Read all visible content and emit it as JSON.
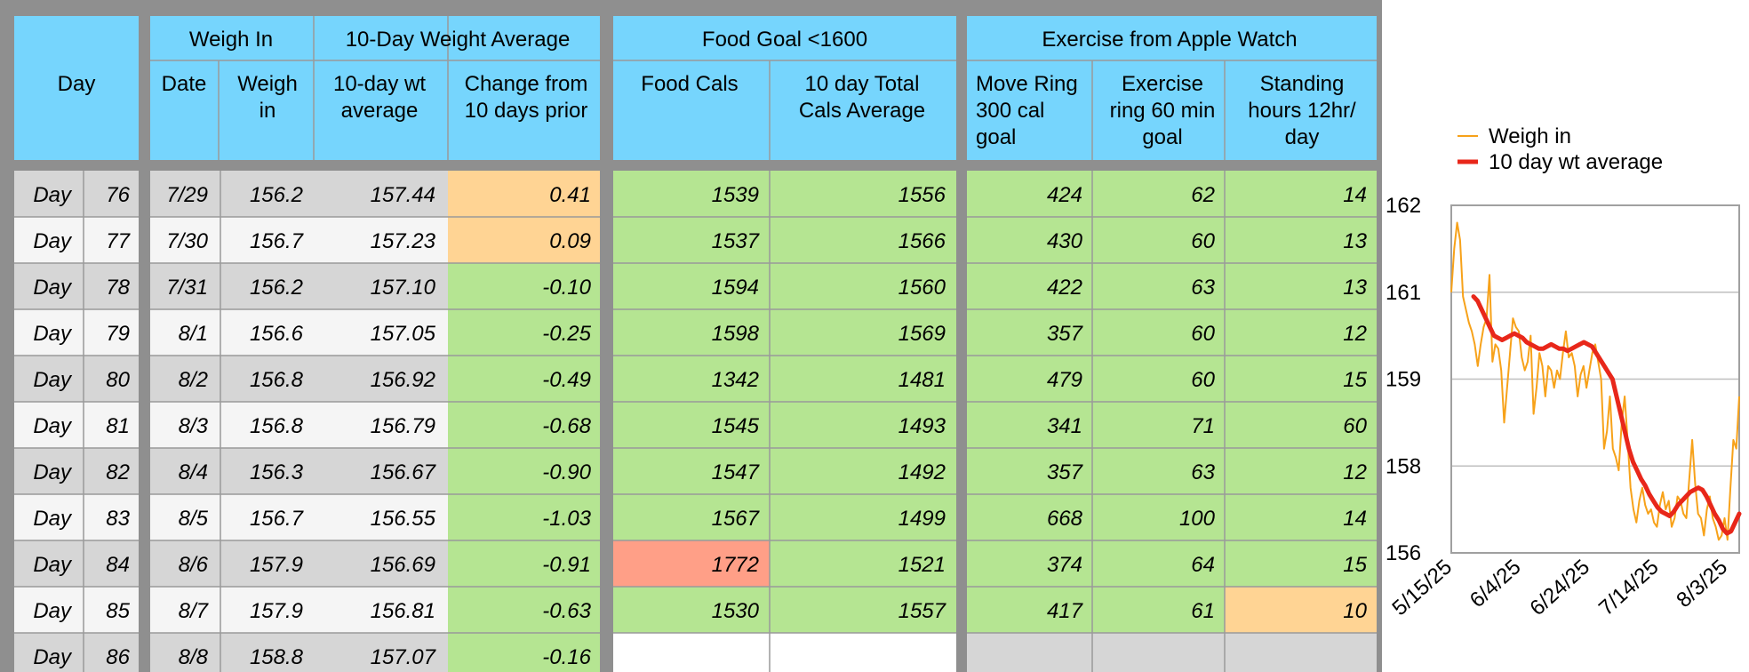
{
  "colors": {
    "header": "#76d5fd",
    "green": "#b5e592",
    "orange": "#ffd494",
    "red": "#ff9f87",
    "gray": "#d6d6d6",
    "light": "#f5f5f5",
    "frame": "#8f8f8f",
    "grid": "#9a9a9a"
  },
  "header": {
    "groups": {
      "weigh_in": "Weigh In",
      "ten_day_avg": "10-Day Weight Average",
      "food_goal": "Food Goal <1600",
      "exercise": "Exercise from Apple Watch"
    },
    "day": "Day",
    "date": "Date",
    "weigh_in_lines": [
      "Weigh",
      "in"
    ],
    "wt_avg_lines": [
      "10-day wt",
      "average"
    ],
    "change_lines": [
      "Change from",
      "10 days prior"
    ],
    "food_cals": "Food Cals",
    "total_cals_lines": [
      "10 day Total",
      "Cals Average"
    ],
    "move_lines": [
      "Move Ring",
      "300 cal",
      "goal"
    ],
    "exercise_lines": [
      "Exercise",
      "ring 60 min",
      "goal"
    ],
    "standing_lines": [
      "Standing",
      "hours 12hr/",
      "day"
    ]
  },
  "rows": [
    {
      "label": "Day",
      "day": "76",
      "date": "7/29",
      "weigh": "156.2",
      "avg": "157.44",
      "change": "0.41",
      "change_color": "orange",
      "food": "1539",
      "food_color": "green",
      "total": "1556",
      "move": "424",
      "exercise": "62",
      "stand": "14",
      "stand_color": "green"
    },
    {
      "label": "Day",
      "day": "77",
      "date": "7/30",
      "weigh": "156.7",
      "avg": "157.23",
      "change": "0.09",
      "change_color": "orange",
      "food": "1537",
      "food_color": "green",
      "total": "1566",
      "move": "430",
      "exercise": "60",
      "stand": "13",
      "stand_color": "green"
    },
    {
      "label": "Day",
      "day": "78",
      "date": "7/31",
      "weigh": "156.2",
      "avg": "157.10",
      "change": "-0.10",
      "change_color": "green",
      "food": "1594",
      "food_color": "green",
      "total": "1560",
      "move": "422",
      "exercise": "63",
      "stand": "13",
      "stand_color": "green"
    },
    {
      "label": "Day",
      "day": "79",
      "date": "8/1",
      "weigh": "156.6",
      "avg": "157.05",
      "change": "-0.25",
      "change_color": "green",
      "food": "1598",
      "food_color": "green",
      "total": "1569",
      "move": "357",
      "exercise": "60",
      "stand": "12",
      "stand_color": "green"
    },
    {
      "label": "Day",
      "day": "80",
      "date": "8/2",
      "weigh": "156.8",
      "avg": "156.92",
      "change": "-0.49",
      "change_color": "green",
      "food": "1342",
      "food_color": "green",
      "total": "1481",
      "move": "479",
      "exercise": "60",
      "stand": "15",
      "stand_color": "green"
    },
    {
      "label": "Day",
      "day": "81",
      "date": "8/3",
      "weigh": "156.8",
      "avg": "156.79",
      "change": "-0.68",
      "change_color": "green",
      "food": "1545",
      "food_color": "green",
      "total": "1493",
      "move": "341",
      "exercise": "71",
      "stand": "60",
      "stand_color": "green"
    },
    {
      "label": "Day",
      "day": "82",
      "date": "8/4",
      "weigh": "156.3",
      "avg": "156.67",
      "change": "-0.90",
      "change_color": "green",
      "food": "1547",
      "food_color": "green",
      "total": "1492",
      "move": "357",
      "exercise": "63",
      "stand": "12",
      "stand_color": "green"
    },
    {
      "label": "Day",
      "day": "83",
      "date": "8/5",
      "weigh": "156.7",
      "avg": "156.55",
      "change": "-1.03",
      "change_color": "green",
      "food": "1567",
      "food_color": "green",
      "total": "1499",
      "move": "668",
      "exercise": "100",
      "stand": "14",
      "stand_color": "green"
    },
    {
      "label": "Day",
      "day": "84",
      "date": "8/6",
      "weigh": "157.9",
      "avg": "156.69",
      "change": "-0.91",
      "change_color": "green",
      "food": "1772",
      "food_color": "red",
      "total": "1521",
      "move": "374",
      "exercise": "64",
      "stand": "15",
      "stand_color": "green"
    },
    {
      "label": "Day",
      "day": "85",
      "date": "8/7",
      "weigh": "157.9",
      "avg": "156.81",
      "change": "-0.63",
      "change_color": "green",
      "food": "1530",
      "food_color": "green",
      "total": "1557",
      "move": "417",
      "exercise": "61",
      "stand": "10",
      "stand_color": "orange"
    },
    {
      "label": "Day",
      "day": "86",
      "date": "8/8",
      "weigh": "158.8",
      "avg": "157.07",
      "change": "-0.16",
      "change_color": "green",
      "food": "",
      "food_color": "white",
      "total": "",
      "move": "",
      "exercise": "",
      "stand": "",
      "stand_color": "gray"
    }
  ],
  "chart_data": {
    "type": "line",
    "title": "",
    "xlabel": "",
    "ylabel": "",
    "x_ticks": [
      "5/15/25",
      "6/4/25",
      "6/24/25",
      "7/14/25",
      "8/3/25"
    ],
    "y_tick_labels": [
      "162",
      "161",
      "159",
      "158",
      "156"
    ],
    "ylim": [
      156,
      162
    ],
    "grid": true,
    "legend_position": "top",
    "series": [
      {
        "name": "Weigh in",
        "color": "#f7a21a",
        "width": 2,
        "values": [
          161.0,
          161.5,
          161.8,
          161.6,
          160.9,
          160.6,
          160.3,
          160.1,
          159.8,
          159.3,
          159.8,
          160.2,
          160.4,
          161.2,
          159.4,
          159.8,
          159.7,
          159.2,
          158.5,
          158.9,
          159.6,
          160.4,
          160.2,
          160.1,
          159.5,
          159.2,
          159.4,
          160.0,
          158.6,
          158.9,
          159.6,
          159.3,
          158.8,
          159.3,
          159.2,
          158.9,
          159.2,
          159.0,
          159.6,
          160.1,
          159.5,
          159.6,
          159.3,
          158.8,
          159.1,
          159.3,
          158.9,
          159.2,
          159.6,
          159.8,
          159.4,
          159.0,
          158.2,
          158.4,
          158.8,
          158.2,
          158.1,
          157.9,
          158.5,
          158.8,
          158.3,
          157.5,
          157.0,
          156.7,
          157.2,
          157.5,
          157.1,
          156.9,
          157.0,
          156.7,
          156.6,
          157.1,
          157.4,
          157.0,
          157.2,
          156.6,
          156.8,
          157.3,
          157.2,
          156.9,
          156.8,
          157.7,
          158.3,
          157.6,
          156.9,
          156.8,
          156.4,
          157.0,
          157.3,
          156.8,
          156.6,
          156.3,
          156.4,
          156.8,
          156.3,
          157.5,
          158.3,
          158.2,
          158.8
        ]
      },
      {
        "name": "10 day wt average",
        "color": "#e8271a",
        "width": 5,
        "values": [
          160.9,
          160.8,
          160.6,
          160.4,
          160.2,
          160.0,
          159.95,
          159.9,
          159.95,
          160.0,
          160.05,
          160.0,
          159.95,
          159.85,
          159.8,
          159.75,
          159.7,
          159.7,
          159.75,
          159.8,
          159.75,
          159.7,
          159.7,
          159.65,
          159.7,
          159.75,
          159.8,
          159.85,
          159.8,
          159.75,
          159.6,
          159.45,
          159.3,
          159.15,
          159.0,
          158.8,
          158.6,
          158.4,
          158.2,
          158.05,
          157.9,
          157.7,
          157.55,
          157.35,
          157.2,
          157.05,
          156.95,
          156.9,
          156.85,
          156.95,
          157.1,
          157.2,
          157.3,
          157.4,
          157.45,
          157.5,
          157.45,
          157.3,
          157.1,
          156.9,
          156.75,
          156.55,
          156.45,
          156.5,
          156.7,
          156.9
        ]
      }
    ]
  }
}
